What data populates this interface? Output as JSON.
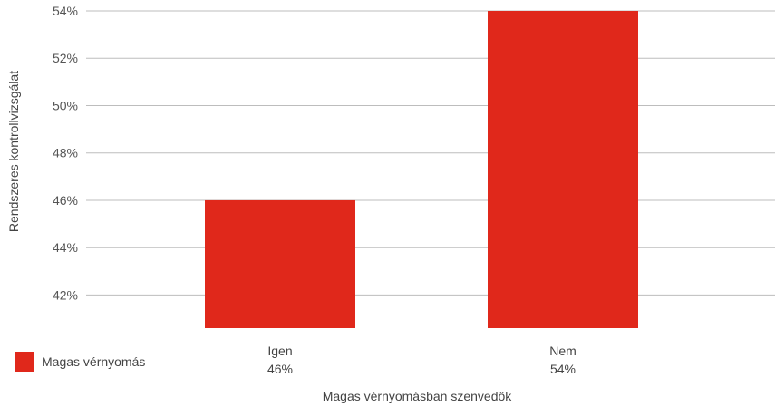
{
  "chart_data": {
    "type": "bar",
    "categories": [
      "Igen",
      "Nem"
    ],
    "values": [
      46,
      54
    ],
    "value_labels": [
      "46%",
      "54%"
    ],
    "series": [
      {
        "name": "Magas vérnyomás",
        "values": [
          46,
          54
        ],
        "color": "#e0281b"
      }
    ],
    "xlabel": "Magas vérnyomásban szenvedők",
    "ylabel": "Rendszeres kontrollvizsgálat",
    "yticks": [
      42,
      44,
      46,
      48,
      50,
      52,
      54
    ],
    "ytick_labels": [
      "42%",
      "44%",
      "46%",
      "48%",
      "50%",
      "52%",
      "54%"
    ],
    "ylim": [
      40.6,
      54
    ],
    "grid": true,
    "legend_position": "bottom-left"
  },
  "legend": {
    "label": "Magas vérnyomás",
    "color": "#e0281b"
  }
}
